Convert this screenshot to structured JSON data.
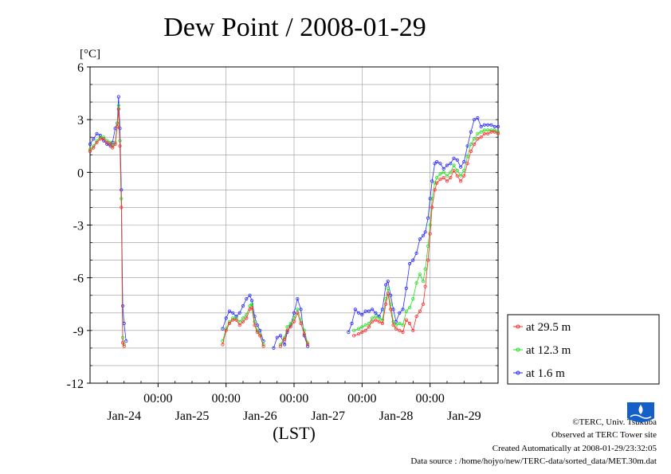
{
  "colors": {
    "series_29_5": "#ff2a2a",
    "series_12_3": "#22e022",
    "series_1_6": "#2a2aff",
    "grid": "#999999",
    "axis": "#000000",
    "logo": "#1560c8"
  },
  "footer": {
    "credit": "©TERC, Univ. Tsukuba",
    "observed": "Observed at TERC Tower site",
    "created": "Created Automatically at 2008-01-29/23:32:05",
    "source": "Data source : /home/hojyo/new/TERC-data/sorted_data/MET.30m.dat"
  },
  "logo": {
    "icon": "terc-logo-icon",
    "text": "TERC"
  },
  "chart_data": {
    "type": "line",
    "title": "Dew Point / 2008-01-29",
    "ylabel": "[°C]",
    "xlabel": "(LST)",
    "ylim": [
      -12,
      6
    ],
    "xlim": [
      0,
      6
    ],
    "yticks": [
      "6",
      "3",
      "0",
      "-3",
      "-6",
      "-9",
      "-12"
    ],
    "x_time_ticks": [
      "00:00",
      "00:00",
      "00:00",
      "00:00",
      "00:00"
    ],
    "x_day_labels": [
      "Jan-24",
      "Jan-25",
      "Jan-26",
      "Jan-27",
      "Jan-28",
      "Jan-29"
    ],
    "grid": true,
    "legend_position": "right",
    "series": [
      {
        "name": "at 29.5 m",
        "segments": [
          [
            [
              0.0,
              1.2
            ],
            [
              0.05,
              1.4
            ],
            [
              0.1,
              1.7
            ],
            [
              0.15,
              1.9
            ],
            [
              0.2,
              1.9
            ],
            [
              0.25,
              1.7
            ],
            [
              0.3,
              1.6
            ],
            [
              0.33,
              1.4
            ],
            [
              0.37,
              1.6
            ],
            [
              0.4,
              2.6
            ],
            [
              0.42,
              3.6
            ],
            [
              0.44,
              1.5
            ],
            [
              0.46,
              -2.0
            ],
            [
              0.48,
              -9.7
            ],
            [
              0.5,
              -9.9
            ]
          ],
          [
            [
              1.95,
              -9.8
            ],
            [
              2.0,
              -9.0
            ],
            [
              2.05,
              -8.6
            ],
            [
              2.1,
              -8.4
            ],
            [
              2.15,
              -8.4
            ],
            [
              2.2,
              -8.7
            ],
            [
              2.25,
              -8.5
            ],
            [
              2.3,
              -8.3
            ],
            [
              2.35,
              -7.8
            ],
            [
              2.38,
              -7.7
            ],
            [
              2.42,
              -8.7
            ],
            [
              2.46,
              -9.1
            ],
            [
              2.5,
              -9.3
            ],
            [
              2.55,
              -9.9
            ]
          ],
          [
            [
              2.8,
              -9.9
            ],
            [
              2.86,
              -9.5
            ],
            [
              2.9,
              -9.0
            ],
            [
              2.95,
              -8.8
            ],
            [
              3.0,
              -8.5
            ],
            [
              3.05,
              -8.0
            ],
            [
              3.1,
              -8.6
            ],
            [
              3.15,
              -9.2
            ],
            [
              3.2,
              -9.8
            ]
          ],
          [
            [
              3.88,
              -9.3
            ],
            [
              3.95,
              -9.2
            ],
            [
              4.0,
              -9.1
            ],
            [
              4.05,
              -9.0
            ],
            [
              4.1,
              -8.8
            ],
            [
              4.15,
              -8.5
            ],
            [
              4.2,
              -8.4
            ],
            [
              4.25,
              -8.5
            ],
            [
              4.3,
              -8.6
            ],
            [
              4.35,
              -7.5
            ],
            [
              4.38,
              -6.9
            ],
            [
              4.42,
              -7.8
            ],
            [
              4.46,
              -8.7
            ],
            [
              4.5,
              -8.9
            ],
            [
              4.55,
              -9.0
            ],
            [
              4.6,
              -9.1
            ],
            [
              4.65,
              -8.4
            ],
            [
              4.7,
              -8.6
            ],
            [
              4.75,
              -9.0
            ],
            [
              4.8,
              -8.2
            ],
            [
              4.85,
              -7.9
            ],
            [
              4.9,
              -7.5
            ],
            [
              4.93,
              -6.5
            ],
            [
              4.97,
              -5.0
            ],
            [
              5.0,
              -3.5
            ],
            [
              5.03,
              -2.0
            ],
            [
              5.07,
              -1.0
            ],
            [
              5.1,
              -0.6
            ],
            [
              5.15,
              -0.4
            ],
            [
              5.2,
              -0.3
            ],
            [
              5.25,
              -0.5
            ],
            [
              5.3,
              -0.3
            ],
            [
              5.35,
              0.1
            ],
            [
              5.4,
              -0.2
            ],
            [
              5.45,
              -0.5
            ],
            [
              5.5,
              -0.2
            ],
            [
              5.55,
              0.5
            ],
            [
              5.6,
              1.2
            ],
            [
              5.65,
              1.6
            ],
            [
              5.7,
              1.9
            ],
            [
              5.75,
              2.0
            ],
            [
              5.8,
              2.2
            ],
            [
              5.85,
              2.2
            ],
            [
              5.9,
              2.3
            ],
            [
              5.95,
              2.3
            ],
            [
              6.0,
              2.2
            ]
          ]
        ]
      },
      {
        "name": "at 12.3 m",
        "segments": [
          [
            [
              0.0,
              1.3
            ],
            [
              0.05,
              1.5
            ],
            [
              0.1,
              1.8
            ],
            [
              0.15,
              2.0
            ],
            [
              0.2,
              2.0
            ],
            [
              0.25,
              1.8
            ],
            [
              0.3,
              1.7
            ],
            [
              0.33,
              1.5
            ],
            [
              0.37,
              1.7
            ],
            [
              0.4,
              2.8
            ],
            [
              0.42,
              3.8
            ],
            [
              0.44,
              1.8
            ],
            [
              0.46,
              -1.5
            ],
            [
              0.48,
              -9.4
            ],
            [
              0.5,
              -9.8
            ]
          ],
          [
            [
              1.95,
              -9.6
            ],
            [
              2.0,
              -8.9
            ],
            [
              2.05,
              -8.5
            ],
            [
              2.1,
              -8.3
            ],
            [
              2.15,
              -8.3
            ],
            [
              2.2,
              -8.5
            ],
            [
              2.25,
              -8.3
            ],
            [
              2.3,
              -8.1
            ],
            [
              2.35,
              -7.6
            ],
            [
              2.38,
              -7.5
            ],
            [
              2.42,
              -8.5
            ],
            [
              2.46,
              -9.0
            ],
            [
              2.5,
              -9.2
            ],
            [
              2.55,
              -9.8
            ]
          ],
          [
            [
              2.8,
              -9.8
            ],
            [
              2.86,
              -9.4
            ],
            [
              2.9,
              -8.8
            ],
            [
              2.95,
              -8.6
            ],
            [
              3.0,
              -8.3
            ],
            [
              3.05,
              -7.8
            ],
            [
              3.1,
              -8.4
            ],
            [
              3.15,
              -9.0
            ],
            [
              3.2,
              -9.7
            ]
          ],
          [
            [
              3.88,
              -9.0
            ],
            [
              3.95,
              -8.9
            ],
            [
              4.0,
              -8.8
            ],
            [
              4.05,
              -8.7
            ],
            [
              4.1,
              -8.6
            ],
            [
              4.15,
              -8.3
            ],
            [
              4.2,
              -8.2
            ],
            [
              4.25,
              -8.3
            ],
            [
              4.3,
              -8.4
            ],
            [
              4.35,
              -7.2
            ],
            [
              4.38,
              -6.6
            ],
            [
              4.42,
              -7.5
            ],
            [
              4.46,
              -8.5
            ],
            [
              4.5,
              -8.7
            ],
            [
              4.55,
              -8.6
            ],
            [
              4.6,
              -8.7
            ],
            [
              4.65,
              -7.9
            ],
            [
              4.7,
              -7.7
            ],
            [
              4.75,
              -7.2
            ],
            [
              4.8,
              -6.3
            ],
            [
              4.85,
              -5.8
            ],
            [
              4.9,
              -6.2
            ],
            [
              4.93,
              -5.5
            ],
            [
              4.97,
              -4.2
            ],
            [
              5.0,
              -3.0
            ],
            [
              5.03,
              -1.5
            ],
            [
              5.07,
              -0.6
            ],
            [
              5.1,
              -0.3
            ],
            [
              5.15,
              -0.1
            ],
            [
              5.2,
              0.0
            ],
            [
              5.25,
              -0.2
            ],
            [
              5.3,
              0.0
            ],
            [
              5.35,
              0.4
            ],
            [
              5.4,
              0.1
            ],
            [
              5.45,
              -0.2
            ],
            [
              5.5,
              0.1
            ],
            [
              5.55,
              0.9
            ],
            [
              5.6,
              1.6
            ],
            [
              5.65,
              1.9
            ],
            [
              5.7,
              2.2
            ],
            [
              5.75,
              2.3
            ],
            [
              5.8,
              2.4
            ],
            [
              5.85,
              2.4
            ],
            [
              5.9,
              2.4
            ],
            [
              5.95,
              2.4
            ],
            [
              6.0,
              2.3
            ]
          ]
        ]
      },
      {
        "name": "at 1.6 m",
        "segments": [
          [
            [
              0.0,
              1.6
            ],
            [
              0.05,
              1.9
            ],
            [
              0.1,
              2.2
            ],
            [
              0.15,
              2.1
            ],
            [
              0.2,
              1.8
            ],
            [
              0.25,
              1.6
            ],
            [
              0.3,
              1.5
            ],
            [
              0.33,
              1.7
            ],
            [
              0.37,
              2.5
            ],
            [
              0.4,
              2.8
            ],
            [
              0.42,
              4.3
            ],
            [
              0.44,
              2.5
            ],
            [
              0.46,
              -1.0
            ],
            [
              0.48,
              -7.6
            ],
            [
              0.5,
              -8.6
            ],
            [
              0.53,
              -9.6
            ]
          ],
          [
            [
              1.95,
              -8.9
            ],
            [
              2.0,
              -8.3
            ],
            [
              2.05,
              -7.9
            ],
            [
              2.1,
              -8.0
            ],
            [
              2.15,
              -8.2
            ],
            [
              2.2,
              -8.0
            ],
            [
              2.25,
              -7.6
            ],
            [
              2.3,
              -7.2
            ],
            [
              2.35,
              -7.0
            ],
            [
              2.38,
              -7.3
            ],
            [
              2.42,
              -8.2
            ],
            [
              2.46,
              -8.7
            ],
            [
              2.5,
              -9.0
            ],
            [
              2.55,
              -9.6
            ]
          ],
          [
            [
              2.7,
              -10.0
            ],
            [
              2.75,
              -9.4
            ],
            [
              2.8,
              -9.3
            ],
            [
              2.86,
              -9.8
            ],
            [
              2.9,
              -9.1
            ],
            [
              2.95,
              -8.7
            ],
            [
              3.0,
              -8.0
            ],
            [
              3.05,
              -7.2
            ],
            [
              3.1,
              -7.8
            ],
            [
              3.15,
              -9.3
            ],
            [
              3.2,
              -9.9
            ]
          ],
          [
            [
              3.8,
              -9.1
            ],
            [
              3.85,
              -8.6
            ],
            [
              3.9,
              -7.8
            ],
            [
              3.95,
              -8.0
            ],
            [
              4.0,
              -8.1
            ],
            [
              4.05,
              -7.9
            ],
            [
              4.1,
              -7.9
            ],
            [
              4.15,
              -7.8
            ],
            [
              4.2,
              -8.0
            ],
            [
              4.25,
              -8.2
            ],
            [
              4.3,
              -7.8
            ],
            [
              4.35,
              -6.4
            ],
            [
              4.38,
              -6.2
            ],
            [
              4.42,
              -7.0
            ],
            [
              4.46,
              -7.8
            ],
            [
              4.5,
              -8.5
            ],
            [
              4.55,
              -8.0
            ],
            [
              4.6,
              -7.8
            ],
            [
              4.65,
              -6.6
            ],
            [
              4.7,
              -5.2
            ],
            [
              4.75,
              -5.0
            ],
            [
              4.8,
              -4.6
            ],
            [
              4.85,
              -3.8
            ],
            [
              4.9,
              -3.6
            ],
            [
              4.93,
              -3.4
            ],
            [
              4.97,
              -2.6
            ],
            [
              5.0,
              -1.5
            ],
            [
              5.03,
              -0.5
            ],
            [
              5.07,
              0.5
            ],
            [
              5.1,
              0.6
            ],
            [
              5.15,
              0.5
            ],
            [
              5.2,
              0.2
            ],
            [
              5.25,
              0.4
            ],
            [
              5.3,
              0.5
            ],
            [
              5.35,
              0.8
            ],
            [
              5.4,
              0.7
            ],
            [
              5.45,
              0.3
            ],
            [
              5.5,
              0.6
            ],
            [
              5.55,
              1.5
            ],
            [
              5.6,
              2.3
            ],
            [
              5.65,
              3.0
            ],
            [
              5.7,
              3.1
            ],
            [
              5.75,
              2.6
            ],
            [
              5.8,
              2.7
            ],
            [
              5.85,
              2.7
            ],
            [
              5.9,
              2.7
            ],
            [
              5.95,
              2.6
            ],
            [
              6.0,
              2.6
            ]
          ]
        ]
      }
    ]
  }
}
